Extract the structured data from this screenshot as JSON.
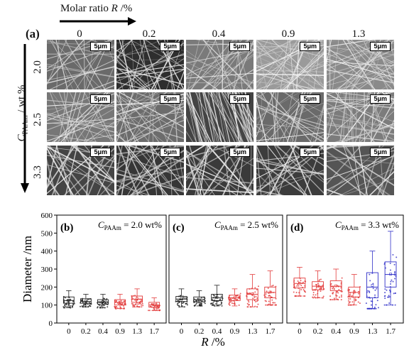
{
  "top": {
    "panel_label": "(a)",
    "molar_ratio_label": "Molar ratio ",
    "molar_ratio_symbol": "R",
    "molar_ratio_unit": " /%",
    "columns": [
      "0",
      "0.2",
      "0.4",
      "0.9",
      "1.3"
    ],
    "conc_label_main": "C",
    "conc_label_sub": "PAAm",
    "conc_label_unit": " / wt %",
    "rows": [
      "2.0",
      "2.5",
      "3.3"
    ],
    "scale_bar": "5μm"
  },
  "chart_data": [
    {
      "type": "box",
      "panel": "(b)",
      "title_main": "C",
      "title_sub": "PAAm",
      "title_rest": " = 2.0 wt%",
      "categories": [
        "0",
        "0.2",
        "0.4",
        "0.9",
        "1.3",
        "1.7"
      ],
      "series_colors": [
        "#222222",
        "#222222",
        "#222222",
        "#e23b3b",
        "#e23b3b",
        "#e23b3b"
      ],
      "boxes": [
        {
          "q1": 110,
          "median": 125,
          "q3": 145,
          "mean": 127,
          "min": 85,
          "max": 180
        },
        {
          "q1": 110,
          "median": 120,
          "q3": 135,
          "mean": 122,
          "min": 90,
          "max": 160
        },
        {
          "q1": 105,
          "median": 118,
          "q3": 130,
          "mean": 118,
          "min": 85,
          "max": 160
        },
        {
          "q1": 100,
          "median": 115,
          "q3": 130,
          "mean": 116,
          "min": 80,
          "max": 160
        },
        {
          "q1": 115,
          "median": 133,
          "q3": 150,
          "mean": 135,
          "min": 90,
          "max": 190
        },
        {
          "q1": 88,
          "median": 100,
          "q3": 115,
          "mean": 102,
          "min": 70,
          "max": 140
        }
      ],
      "ylim": [
        0,
        600
      ],
      "yticks": [
        0,
        100,
        200,
        300,
        400,
        500,
        600
      ]
    },
    {
      "type": "box",
      "panel": "(c)",
      "title_main": "C",
      "title_sub": "PAAm",
      "title_rest": " = 2.5 wt%",
      "categories": [
        "0",
        "0.2",
        "0.4",
        "0.9",
        "1.3",
        "1.7"
      ],
      "series_colors": [
        "#222222",
        "#222222",
        "#222222",
        "#e23b3b",
        "#e23b3b",
        "#e23b3b"
      ],
      "boxes": [
        {
          "q1": 120,
          "median": 133,
          "q3": 148,
          "mean": 135,
          "min": 90,
          "max": 190
        },
        {
          "q1": 118,
          "median": 130,
          "q3": 145,
          "mean": 132,
          "min": 95,
          "max": 180
        },
        {
          "q1": 125,
          "median": 140,
          "q3": 160,
          "mean": 143,
          "min": 95,
          "max": 210
        },
        {
          "q1": 125,
          "median": 140,
          "q3": 155,
          "mean": 141,
          "min": 95,
          "max": 190
        },
        {
          "q1": 130,
          "median": 160,
          "q3": 190,
          "mean": 162,
          "min": 90,
          "max": 270
        },
        {
          "q1": 140,
          "median": 170,
          "q3": 200,
          "mean": 172,
          "min": 100,
          "max": 290
        }
      ],
      "ylim": [
        0,
        600
      ]
    },
    {
      "type": "box",
      "panel": "(d)",
      "title_main": "C",
      "title_sub": "PAAm",
      "title_rest": " = 3.3 wt%",
      "categories": [
        "0",
        "0.2",
        "0.4",
        "0.9",
        "1.3",
        "1.7"
      ],
      "series_colors": [
        "#e23b3b",
        "#e23b3b",
        "#e23b3b",
        "#e23b3b",
        "#3030c8",
        "#3030c8"
      ],
      "boxes": [
        {
          "q1": 195,
          "median": 220,
          "q3": 250,
          "mean": 222,
          "min": 150,
          "max": 310
        },
        {
          "q1": 185,
          "median": 205,
          "q3": 230,
          "mean": 207,
          "min": 140,
          "max": 290
        },
        {
          "q1": 180,
          "median": 205,
          "q3": 235,
          "mean": 207,
          "min": 130,
          "max": 300
        },
        {
          "q1": 145,
          "median": 170,
          "q3": 200,
          "mean": 172,
          "min": 100,
          "max": 270
        },
        {
          "q1": 140,
          "median": 200,
          "q3": 280,
          "mean": 210,
          "min": 80,
          "max": 400
        },
        {
          "q1": 200,
          "median": 270,
          "q3": 340,
          "mean": 272,
          "min": 100,
          "max": 510
        }
      ],
      "ylim": [
        0,
        600
      ]
    }
  ],
  "axes": {
    "ylabel": "Diameter /nm",
    "xlabel_symbol": "R",
    "xlabel_unit": " /%"
  }
}
